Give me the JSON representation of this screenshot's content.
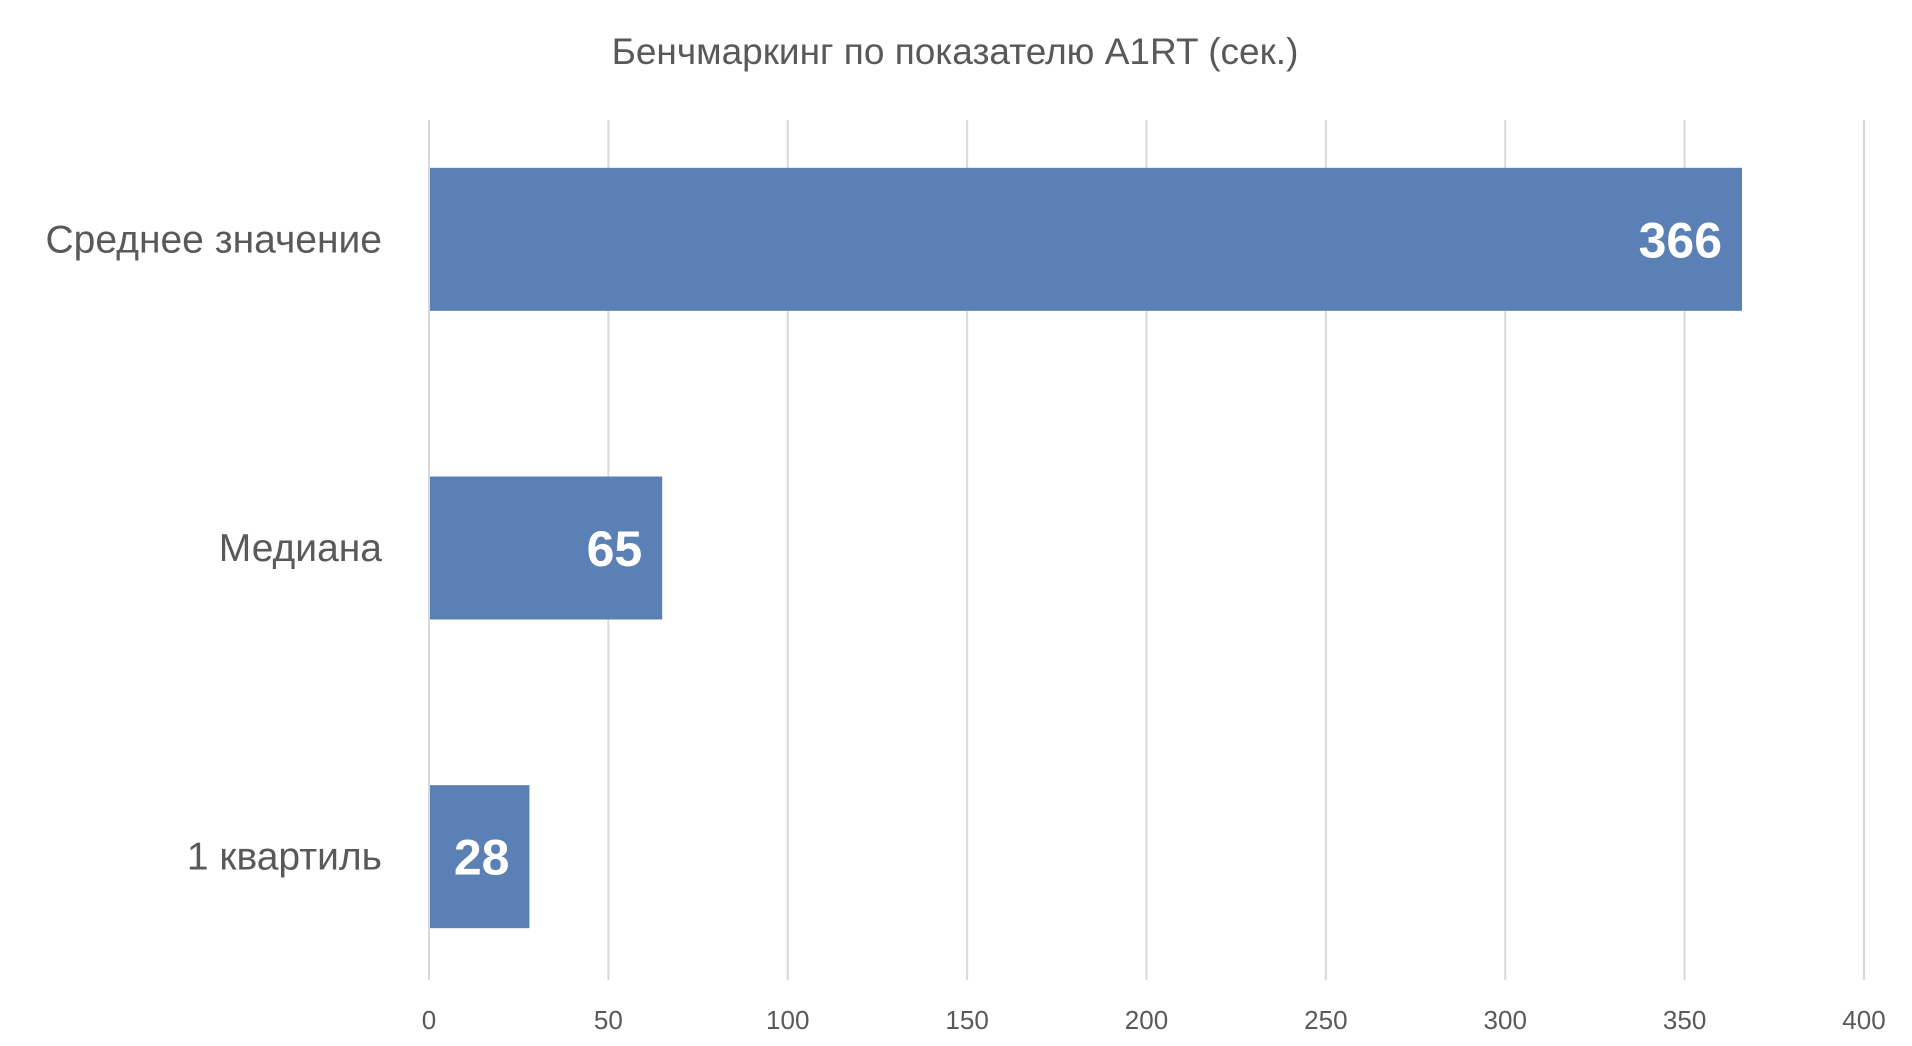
{
  "chart_data": {
    "type": "bar",
    "orientation": "horizontal",
    "title": "Бенчмаркинг по показателю A1RT (сек.)",
    "categories": [
      "Среднее значение",
      "Медиана",
      "1 квартиль"
    ],
    "values": [
      366,
      65,
      28
    ],
    "data_labels": [
      "366",
      "65",
      "28"
    ],
    "xlim": [
      0,
      400
    ],
    "x_ticks": [
      "0",
      "50",
      "100",
      "150",
      "200",
      "250",
      "300",
      "350",
      "400"
    ],
    "grid": "vertical",
    "bar_color": "#5A80B6",
    "xlabel": "",
    "ylabel": ""
  }
}
